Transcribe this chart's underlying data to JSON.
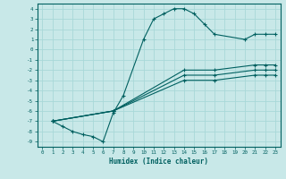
{
  "xlabel": "Humidex (Indice chaleur)",
  "bg_color": "#c8e8e8",
  "grid_color": "#a8d8d8",
  "line_color": "#006060",
  "xlim": [
    -0.5,
    23.5
  ],
  "ylim": [
    -9.5,
    4.5
  ],
  "xticks": [
    0,
    1,
    2,
    3,
    4,
    5,
    6,
    7,
    8,
    9,
    10,
    11,
    12,
    13,
    14,
    15,
    16,
    17,
    18,
    19,
    20,
    21,
    22,
    23
  ],
  "yticks": [
    4,
    3,
    2,
    1,
    0,
    -1,
    -2,
    -3,
    -4,
    -5,
    -6,
    -7,
    -8,
    -9
  ],
  "curve_main_x": [
    1,
    2,
    3,
    4,
    5,
    6,
    7,
    8,
    10,
    11,
    12,
    13,
    14,
    15,
    16,
    17,
    20,
    21,
    22,
    23
  ],
  "curve_main_y": [
    -7,
    -7.5,
    -8,
    -8.3,
    -8.5,
    -9,
    -6.2,
    -4.5,
    1,
    3,
    3.5,
    4,
    4,
    3.5,
    2.5,
    1.5,
    1,
    1.5,
    1.5,
    1.5
  ],
  "curve_a_x": [
    1,
    7,
    14,
    17,
    21,
    22,
    23
  ],
  "curve_a_y": [
    -7,
    -6,
    -2,
    -2,
    -1.5,
    -1.5,
    -1.5
  ],
  "curve_b_x": [
    1,
    7,
    14,
    17,
    21,
    22,
    23
  ],
  "curve_b_y": [
    -7,
    -6,
    -2.5,
    -2.5,
    -2,
    -2,
    -2
  ],
  "curve_c_x": [
    1,
    7,
    14,
    17,
    21,
    22,
    23
  ],
  "curve_c_y": [
    -7,
    -6,
    -3,
    -3,
    -2.5,
    -2.5,
    -2.5
  ]
}
